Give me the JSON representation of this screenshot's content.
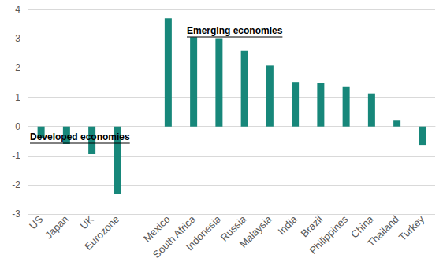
{
  "chart_data": {
    "type": "bar",
    "categories": [
      "US",
      "Japan",
      "UK",
      "Eurozone",
      null,
      "Mexico",
      "South Africa",
      "Indonesia",
      "Russia",
      "Malaysia",
      "India",
      "Brazil",
      "Philippines",
      "China",
      "Thailand",
      "Turkey"
    ],
    "values": [
      -0.4,
      -0.6,
      -0.95,
      -2.3,
      null,
      3.7,
      3.05,
      3.02,
      2.58,
      2.08,
      1.52,
      1.48,
      1.37,
      1.13,
      0.2,
      -0.63
    ],
    "color": "#17877a",
    "ylim": [
      -3,
      4
    ],
    "yticks": [
      -3,
      -2,
      -1,
      0,
      1,
      2,
      3,
      4
    ],
    "grid": true,
    "annotations": [
      "Developed economies",
      "Emerging economies"
    ]
  }
}
